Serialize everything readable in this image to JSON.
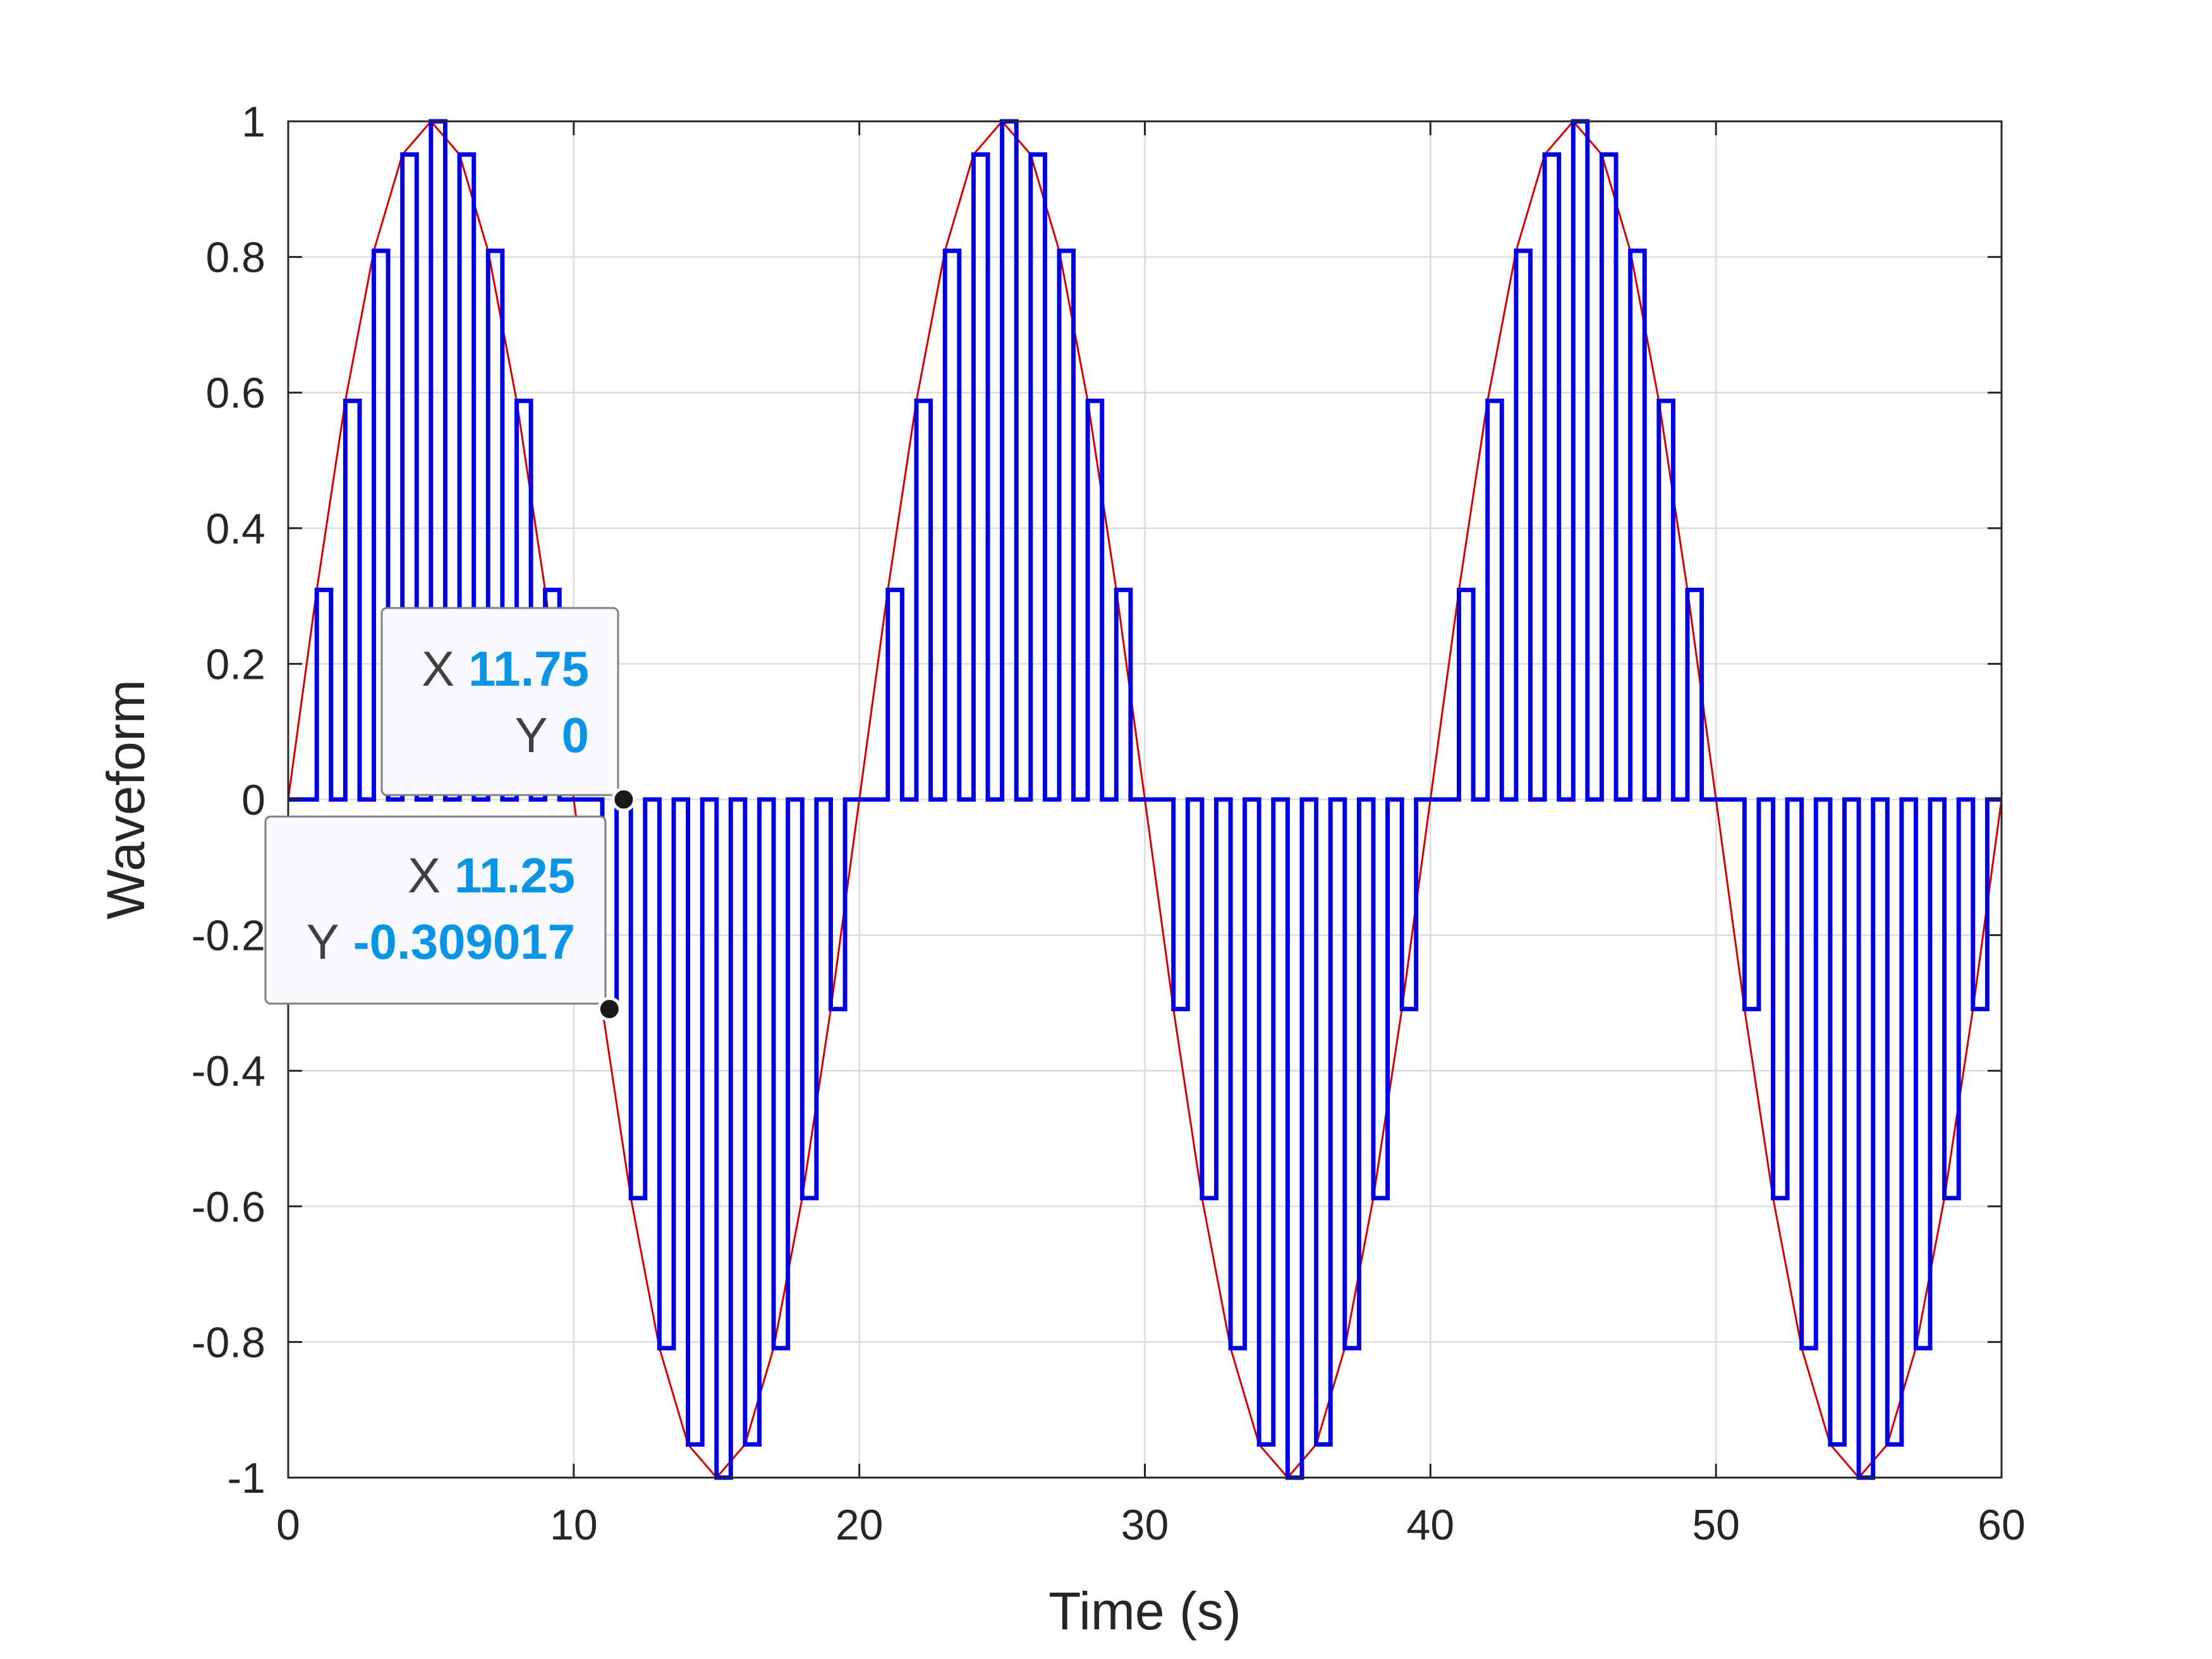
{
  "chart_data": {
    "type": "line",
    "title": "",
    "xlabel": "Time (s)",
    "ylabel": "Waveform",
    "xlim": [
      0,
      60
    ],
    "ylim": [
      -1,
      1
    ],
    "xticks": [
      0,
      10,
      20,
      30,
      40,
      50,
      60
    ],
    "xtick_labels": [
      "0",
      "10",
      "20",
      "30",
      "40",
      "50",
      "60"
    ],
    "yticks": [
      1,
      0.8,
      0.6,
      0.4,
      0.2,
      0,
      -0.2,
      -0.4,
      -0.6,
      -0.8,
      -1
    ],
    "ytick_labels": [
      "1",
      "0.8",
      "0.6",
      "0.4",
      "0.2",
      "0",
      "-0.2",
      "-0.4",
      "-0.6",
      "-0.8",
      "-1"
    ],
    "grid": true,
    "series": [
      {
        "kind": "sine",
        "amplitude": 1,
        "period": 20,
        "sample_step": 1,
        "color": "#d40000"
      },
      {
        "kind": "sampled pulse train",
        "pulse_period": 1,
        "pulse_width": 0.5,
        "levels": [
          0,
          0.309017,
          0.587785,
          0.809017,
          0.951057,
          1,
          0.951057,
          0.809017,
          0.587785,
          0.309017,
          0,
          -0.309017,
          -0.587785,
          -0.809017,
          -0.951057,
          -1,
          -0.951057,
          -0.809017,
          -0.587785,
          -0.309017
        ],
        "color": "#0000e0"
      }
    ],
    "datatips": [
      {
        "x_label": "X",
        "x_value": "11.75",
        "y_label": "Y",
        "y_value": "0",
        "x": 11.75,
        "y": 0
      },
      {
        "x_label": "X",
        "x_value": "11.25",
        "y_label": "Y",
        "y_value": "-0.309017",
        "x": 11.25,
        "y": -0.309017
      }
    ],
    "datatip_value_color": "#0a94e6"
  }
}
